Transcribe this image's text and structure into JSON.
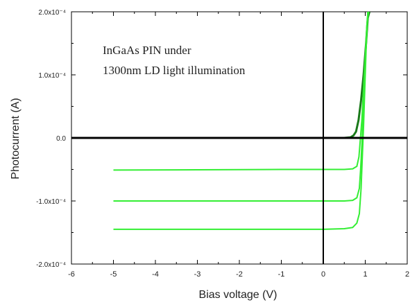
{
  "chart_data": {
    "type": "line",
    "title": "",
    "xlabel": "Bias voltage (V)",
    "ylabel": "Photocurrent (A)",
    "xlim": [
      -6,
      2
    ],
    "ylim": [
      -0.0002,
      0.0002
    ],
    "x_ticks": [
      -6,
      -5,
      -4,
      -3,
      -2,
      -1,
      0,
      1,
      2
    ],
    "x_tick_labels": [
      "-6",
      "-5",
      "-4",
      "-3",
      "-2",
      "-1",
      "0",
      "1",
      "2"
    ],
    "y_ticks": [
      -0.0002,
      -0.0001,
      0,
      0.0001,
      0.0002
    ],
    "y_tick_labels": [
      "-2.0x10⁻⁴",
      "-1.0x10⁻⁴",
      "0.0",
      "1.0x10⁻⁴",
      "2.0x10⁻⁴"
    ],
    "grid": false,
    "annotation_lines": [
      "InGaAs PIN under",
      "1300nm LD light illumination"
    ],
    "colors": {
      "curve": "#33ee33",
      "dark_curve": "#1a7a1a",
      "axis_lines": "#000000"
    },
    "series": [
      {
        "x": [
          -5,
          -3,
          -1,
          0,
          0.5,
          0.65,
          0.72,
          0.78,
          0.84,
          0.9,
          0.96,
          1.02,
          1.06,
          1.1
        ],
        "y": [
          0,
          0,
          0,
          0,
          0,
          1e-06,
          4e-06,
          1e-05,
          2.8e-05,
          6e-05,
          0.0001,
          0.00015,
          0.00019,
          0.0002
        ]
      },
      {
        "x": [
          -5,
          -3,
          -1,
          0,
          0.5,
          0.7,
          0.8,
          0.85,
          0.88,
          0.92,
          0.96,
          1.0,
          1.04,
          1.08
        ],
        "y": [
          -5.1e-05,
          -5.05e-05,
          -5e-05,
          -5e-05,
          -5e-05,
          -4.9e-05,
          -4.5e-05,
          -3e-05,
          -5e-06,
          3e-05,
          8e-05,
          0.00013,
          0.00018,
          0.0002
        ]
      },
      {
        "x": [
          -5,
          -3,
          -1,
          0,
          0.5,
          0.7,
          0.8,
          0.86,
          0.89,
          0.92,
          0.95,
          0.99,
          1.03,
          1.07
        ],
        "y": [
          -0.0001,
          -0.0001,
          -0.0001,
          -0.0001,
          -0.0001,
          -9.9e-05,
          -9.5e-05,
          -8e-05,
          -5e-05,
          -1e-05,
          4e-05,
          0.0001,
          0.00016,
          0.0002
        ]
      },
      {
        "x": [
          -5,
          -3,
          -1,
          0,
          0.5,
          0.7,
          0.8,
          0.86,
          0.9,
          0.93,
          0.96,
          0.99,
          1.02,
          1.06
        ],
        "y": [
          -0.000145,
          -0.000145,
          -0.000145,
          -0.000145,
          -0.000144,
          -0.000142,
          -0.000135,
          -0.00012,
          -8e-05,
          -3e-05,
          2e-05,
          8e-05,
          0.00014,
          0.0002
        ]
      }
    ]
  }
}
